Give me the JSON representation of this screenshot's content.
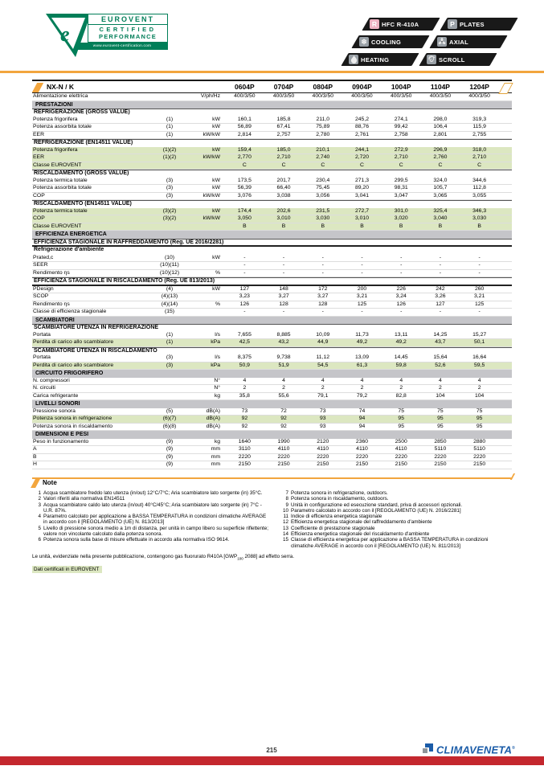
{
  "colors": {
    "accent_orange": "#F2A53E",
    "highlight_green": "#DCE7C1",
    "section_gray": "#C5C5C9",
    "footer_red": "#C4272E",
    "brand_blue": "#1B5CA8",
    "eurovent_green": "#007E58",
    "badge_black": "#191919"
  },
  "eurovent_logo": {
    "line1": "EUROVENT",
    "line2": "CERTIFIED",
    "line3": "PERFORMANCE",
    "url": "www.eurovent-certification.com"
  },
  "badges": {
    "left": [
      {
        "icon": "refrigerant-r-icon",
        "label": "HFC R-410A"
      },
      {
        "icon": "snowflake-icon",
        "label": "COOLING"
      },
      {
        "icon": "flame-icon",
        "label": "HEATING"
      }
    ],
    "right": [
      {
        "icon": "plates-p-icon",
        "label": "PLATES"
      },
      {
        "icon": "fan-icon",
        "label": "AXIAL"
      },
      {
        "icon": "scroll-icon",
        "label": "SCROLL"
      }
    ]
  },
  "table": {
    "series": "NX-N / K",
    "models": [
      "0604P",
      "0704P",
      "0804P",
      "0904P",
      "1004P",
      "1104P",
      "1204P"
    ],
    "rows": [
      {
        "type": "data",
        "label": "Alimentazione elettrica",
        "ref": "",
        "unit": "V/ph/Hz",
        "values": [
          "400/3/50",
          "400/3/50",
          "400/3/50",
          "400/3/50",
          "400/3/50",
          "400/3/50",
          "400/3/50"
        ]
      },
      {
        "type": "section",
        "label": "PRESTAZIONI"
      },
      {
        "type": "subsection",
        "label": "REFRIGERAZIONE (GROSS VALUE)"
      },
      {
        "type": "data",
        "label": "Potenza frigorifera",
        "ref": "(1)",
        "unit": "kW",
        "values": [
          "160,1",
          "185,8",
          "211,0",
          "245,2",
          "274,1",
          "298,0",
          "319,3"
        ]
      },
      {
        "type": "data",
        "label": "Potenza assorbita totale",
        "ref": "(1)",
        "unit": "kW",
        "values": [
          "56,89",
          "67,41",
          "75,89",
          "88,76",
          "99,42",
          "106,4",
          "115,9"
        ]
      },
      {
        "type": "data",
        "label": "EER",
        "ref": "(1)",
        "unit": "kW/kW",
        "values": [
          "2,814",
          "2,757",
          "2,780",
          "2,761",
          "2,758",
          "2,801",
          "2,755"
        ]
      },
      {
        "type": "subsection",
        "label": "REFRIGERAZIONE (EN14511 VALUE)"
      },
      {
        "type": "data",
        "highlight": true,
        "label": "Potenza frigorifera",
        "ref": "(1)(2)",
        "unit": "kW",
        "values": [
          "159,4",
          "185,0",
          "210,1",
          "244,1",
          "272,9",
          "296,9",
          "318,0"
        ]
      },
      {
        "type": "data",
        "highlight": true,
        "label": "EER",
        "ref": "(1)(2)",
        "unit": "kW/kW",
        "values": [
          "2,770",
          "2,710",
          "2,740",
          "2,720",
          "2,710",
          "2,760",
          "2,710"
        ]
      },
      {
        "type": "data",
        "highlight": true,
        "label": "Classe EUROVENT",
        "ref": "",
        "unit": "",
        "values": [
          "C",
          "C",
          "C",
          "C",
          "C",
          "C",
          "C"
        ]
      },
      {
        "type": "subsection",
        "label": "RISCALDAMENTO (GROSS VALUE)"
      },
      {
        "type": "data",
        "label": "Potenza termica totale",
        "ref": "(3)",
        "unit": "kW",
        "values": [
          "173,5",
          "201,7",
          "230,4",
          "271,3",
          "299,5",
          "324,0",
          "344,6"
        ]
      },
      {
        "type": "data",
        "label": "Potenza assorbita totale",
        "ref": "(3)",
        "unit": "kW",
        "values": [
          "56,39",
          "66,40",
          "75,45",
          "89,20",
          "98,31",
          "105,7",
          "112,8"
        ]
      },
      {
        "type": "data",
        "label": "COP",
        "ref": "(3)",
        "unit": "kW/kW",
        "values": [
          "3,076",
          "3,038",
          "3,056",
          "3,041",
          "3,047",
          "3,065",
          "3,055"
        ]
      },
      {
        "type": "subsection",
        "label": "RISCALDAMENTO (EN14511 VALUE)"
      },
      {
        "type": "data",
        "highlight": true,
        "label": "Potenza termica totale",
        "ref": "(3)(2)",
        "unit": "kW",
        "values": [
          "174,4",
          "202,6",
          "231,5",
          "272,7",
          "301,0",
          "325,4",
          "346,3"
        ]
      },
      {
        "type": "data",
        "highlight": true,
        "label": "COP",
        "ref": "(3)(2)",
        "unit": "kW/kW",
        "values": [
          "3,050",
          "3,010",
          "3,030",
          "3,010",
          "3,020",
          "3,040",
          "3,030"
        ]
      },
      {
        "type": "data",
        "highlight": true,
        "label": "Classe EUROVENT",
        "ref": "",
        "unit": "",
        "values": [
          "B",
          "B",
          "B",
          "B",
          "B",
          "B",
          "B"
        ]
      },
      {
        "type": "section",
        "label": "EFFICIENZA ENERGETICA"
      },
      {
        "type": "subsection",
        "underline": true,
        "label": "EFFICIENZA STAGIONALE IN RAFFREDDAMENTO (Reg. UE 2016/2281)"
      },
      {
        "type": "grouplabel",
        "label": "Refrigerazione d'ambiente"
      },
      {
        "type": "data",
        "label": "Prated,c",
        "ref": "(10)",
        "unit": "kW",
        "values": [
          "-",
          "-",
          "-",
          "-",
          "-",
          "-",
          "-"
        ]
      },
      {
        "type": "data",
        "label": "SEER",
        "ref": "(10)(11)",
        "unit": "",
        "values": [
          "-",
          "-",
          "-",
          "-",
          "-",
          "-",
          "-"
        ]
      },
      {
        "type": "data",
        "label": "Rendimento ηs",
        "ref": "(10)(12)",
        "unit": "%",
        "values": [
          "-",
          "-",
          "-",
          "-",
          "-",
          "-",
          "-"
        ]
      },
      {
        "type": "subsection",
        "underline": true,
        "label": "EFFICIENZA STAGIONALE IN RISCALDAMENTO  (Reg. UE 813/2013)"
      },
      {
        "type": "data",
        "label": "PDesign",
        "ref": "(4)",
        "unit": "kW",
        "values": [
          "127",
          "148",
          "172",
          "200",
          "226",
          "242",
          "260"
        ]
      },
      {
        "type": "data",
        "label": "SCOP",
        "ref": "(4)(13)",
        "unit": "",
        "values": [
          "3,23",
          "3,27",
          "3,27",
          "3,21",
          "3,24",
          "3,26",
          "3,21"
        ]
      },
      {
        "type": "data",
        "label": "Rendimento ηs",
        "ref": "(4)(14)",
        "unit": "%",
        "values": [
          "126",
          "128",
          "128",
          "125",
          "126",
          "127",
          "125"
        ]
      },
      {
        "type": "data",
        "label": "Classe di efficienza stagionale",
        "ref": "(15)",
        "unit": "",
        "values": [
          "-",
          "-",
          "-",
          "-",
          "-",
          "-",
          "-"
        ]
      },
      {
        "type": "section",
        "label": "SCAMBIATORI"
      },
      {
        "type": "subsection",
        "label": "SCAMBIATORE UTENZA IN REFRIGERAZIONE"
      },
      {
        "type": "data",
        "label": "Portata",
        "ref": "(1)",
        "unit": "l/s",
        "values": [
          "7,655",
          "8,885",
          "10,09",
          "11,73",
          "13,11",
          "14,25",
          "15,27"
        ]
      },
      {
        "type": "data",
        "highlight": true,
        "label": "Perdita di carico allo scambiatore",
        "ref": "(1)",
        "unit": "kPa",
        "values": [
          "42,5",
          "43,2",
          "44,9",
          "49,2",
          "49,2",
          "43,7",
          "50,1"
        ]
      },
      {
        "type": "subsection",
        "label": "SCAMBIATORE UTENZA IN RISCALDAMENTO"
      },
      {
        "type": "data",
        "label": "Portata",
        "ref": "(3)",
        "unit": "l/s",
        "values": [
          "8,375",
          "9,738",
          "11,12",
          "13,09",
          "14,45",
          "15,64",
          "16,64"
        ]
      },
      {
        "type": "data",
        "highlight": true,
        "label": "Perdita di carico allo scambiatore",
        "ref": "(3)",
        "unit": "kPa",
        "values": [
          "50,9",
          "51,9",
          "54,5",
          "61,3",
          "59,8",
          "52,6",
          "59,5"
        ]
      },
      {
        "type": "section",
        "label": "CIRCUITO FRIGORIFERO"
      },
      {
        "type": "data",
        "label": "N. compressori",
        "ref": "",
        "unit": "N°",
        "values": [
          "4",
          "4",
          "4",
          "4",
          "4",
          "4",
          "4"
        ]
      },
      {
        "type": "data",
        "label": "N. circuiti",
        "ref": "",
        "unit": "N°",
        "values": [
          "2",
          "2",
          "2",
          "2",
          "2",
          "2",
          "2"
        ]
      },
      {
        "type": "data",
        "label": "Carica refrigerante",
        "ref": "",
        "unit": "kg",
        "values": [
          "35,8",
          "55,6",
          "79,1",
          "79,2",
          "82,8",
          "104",
          "104"
        ]
      },
      {
        "type": "section",
        "label": "LIVELLI SONORI"
      },
      {
        "type": "data",
        "label": "Pressione sonora",
        "ref": "(5)",
        "unit": "dB(A)",
        "values": [
          "73",
          "72",
          "73",
          "74",
          "75",
          "75",
          "75"
        ]
      },
      {
        "type": "data",
        "highlight": true,
        "label": "Potenza sonora in refrigerazione",
        "ref": "(6)(7)",
        "unit": "dB(A)",
        "values": [
          "92",
          "92",
          "93",
          "94",
          "95",
          "95",
          "95"
        ]
      },
      {
        "type": "data",
        "label": "Potenza sonora in riscaldamento",
        "ref": "(6)(8)",
        "unit": "dB(A)",
        "values": [
          "92",
          "92",
          "93",
          "94",
          "95",
          "95",
          "95"
        ]
      },
      {
        "type": "section",
        "label": "DIMENSIONI E PESI"
      },
      {
        "type": "data",
        "label": "Peso in funzionamento",
        "ref": "(9)",
        "unit": "kg",
        "values": [
          "1640",
          "1990",
          "2120",
          "2360",
          "2500",
          "2850",
          "2880"
        ]
      },
      {
        "type": "data",
        "label": "A",
        "ref": "(9)",
        "unit": "mm",
        "values": [
          "3110",
          "4110",
          "4110",
          "4110",
          "4110",
          "5110",
          "5110"
        ]
      },
      {
        "type": "data",
        "label": "B",
        "ref": "(9)",
        "unit": "mm",
        "values": [
          "2220",
          "2220",
          "2220",
          "2220",
          "2220",
          "2220",
          "2220"
        ]
      },
      {
        "type": "data",
        "label": "H",
        "ref": "(9)",
        "unit": "mm",
        "values": [
          "2150",
          "2150",
          "2150",
          "2150",
          "2150",
          "2150",
          "2150"
        ]
      }
    ]
  },
  "notes": {
    "title": "Note",
    "left": [
      {
        "n": "1",
        "text": "Acqua scambiatore freddo lato utenza (in/out) 12°C/7°C; Aria scambiatore lato sorgente (in) 35°C."
      },
      {
        "n": "2",
        "text": "Valori riferiti alla normativa EN14511"
      },
      {
        "n": "3",
        "text": "Acqua scambiatore caldo lato utenza (in/out) 40°C/45°C; Aria scambiatore lato sorgente (in) 7°C - U.R. 87%."
      },
      {
        "n": "4",
        "text": "Parametro calcolato per applicazione a BASSA TEMPERATURA in condizioni climatiche AVERAGE in accordo con il [REGOLAMENTO (UE) N. 813/2013]"
      },
      {
        "n": "5",
        "text": "Livello di pressione sonora medio a 1m di distanza, per unità in campo libero su superficie riflettente; valore non vincolante calcolato dalla potenza sonora."
      },
      {
        "n": "6",
        "text": "Potenza sonora sulla base di misure effettuate in accordo alla normativa ISO 9614."
      }
    ],
    "right": [
      {
        "n": "7",
        "text": "Potenza sonora in refrigerazione, outdoors."
      },
      {
        "n": "8",
        "text": "Potenza sonora in riscaldamento, outdoors."
      },
      {
        "n": "9",
        "text": "Unità in configurazione ed esecuzione standard, priva di accessori opzionali."
      },
      {
        "n": "10",
        "text": "Parametro calcolato in accordo con il [REGOLAMENTO (UE) N. 2016/2281]"
      },
      {
        "n": "11",
        "text": "Indice di efficienza energetica stagionale"
      },
      {
        "n": "12",
        "text": "Efficienza energetica stagionale del raffreddamento d'ambiente"
      },
      {
        "n": "13",
        "text": "Coefficiente di prestazione stagionale"
      },
      {
        "n": "14",
        "text": "Efficienza energetica stagionale del riscaldamento d'ambiente"
      },
      {
        "n": "15",
        "text": "Classe di efficienza energetica per applicazione a BASSA TEMPERATURA in condizioni climatiche AVERAGE in accordo con il [REGOLAMENTO (UE) N. 811/2013]"
      }
    ]
  },
  "footer": {
    "gas_pre": "Le unità, evidenziate nella presente pubblicazione, contengono gas fluorurato  R410A [GWP",
    "gas_sub": "100",
    "gas_post": " 2088] ad effetto serra.",
    "certified": "Dati certificati in EUROVENT",
    "page_number": "215",
    "brand": "CLIMAVENETA"
  }
}
